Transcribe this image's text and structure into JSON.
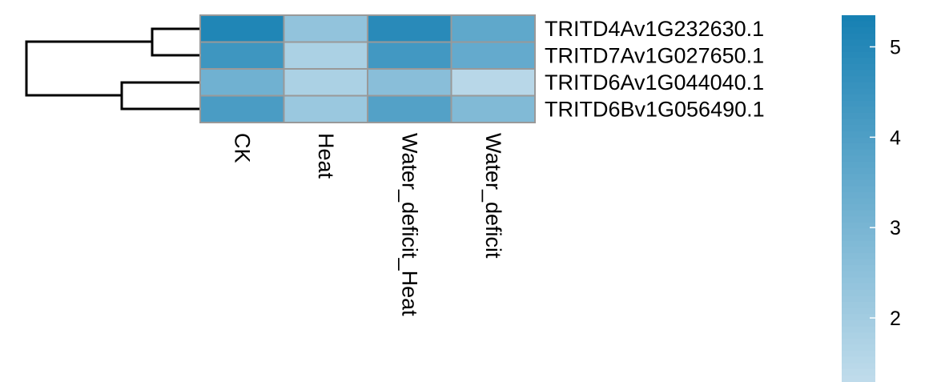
{
  "chart_data": {
    "type": "heatmap",
    "rows": [
      "TRITD4Av1G232630.1",
      "TRITD7Av1G027650.1",
      "TRITD6Av1G044040.1",
      "TRITD6Bv1G056490.1"
    ],
    "columns": [
      "CK",
      "Heat",
      "Water_deficit_Heat",
      "Water_deficit"
    ],
    "values": [
      [
        5.1,
        2.4,
        4.9,
        3.6
      ],
      [
        4.4,
        1.8,
        4.3,
        3.5
      ],
      [
        3.2,
        1.8,
        2.6,
        1.5
      ],
      [
        4.1,
        2.2,
        3.9,
        2.8
      ]
    ],
    "colorbar": {
      "min": 1.3,
      "max": 5.35,
      "ticks": [
        2,
        3,
        4,
        5
      ],
      "low_color": "#c0dceb",
      "high_color": "#1680b3"
    },
    "cell_border_color": "#999999",
    "row_dendrogram": true
  }
}
